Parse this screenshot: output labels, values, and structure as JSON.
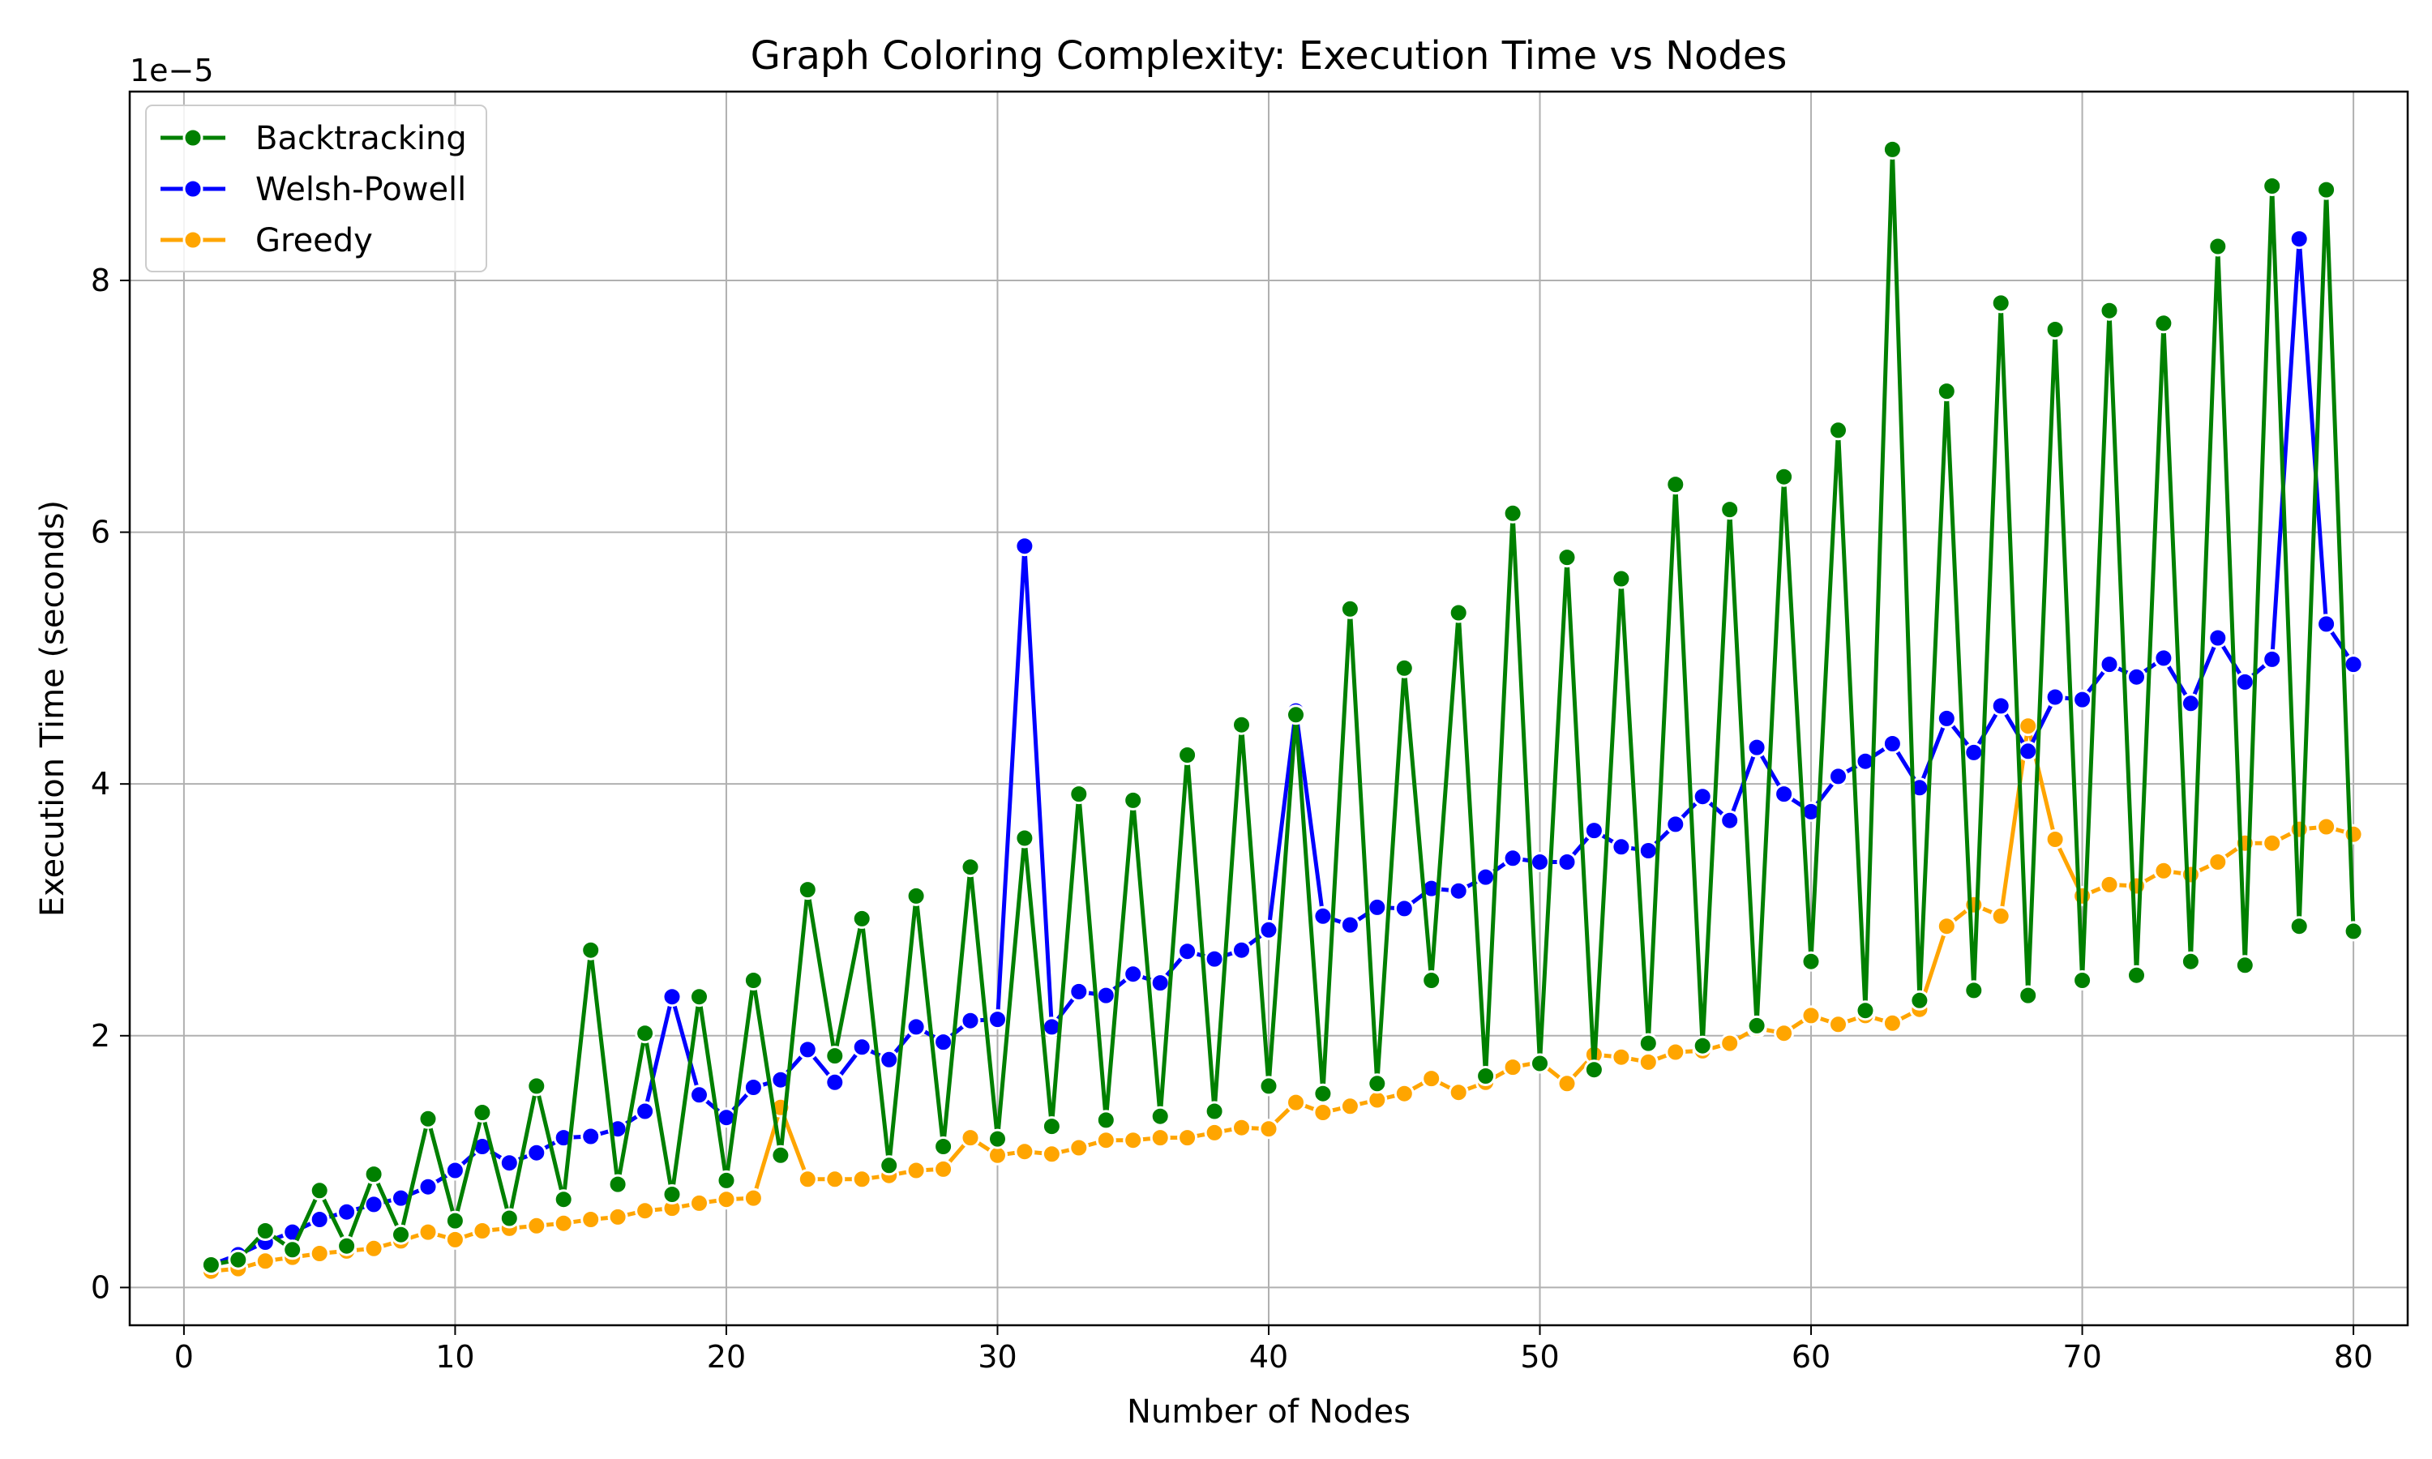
{
  "chart_data": {
    "type": "line",
    "title": "Graph Coloring Complexity: Execution Time vs Nodes",
    "xlabel": "Number of Nodes",
    "ylabel": "Execution Time (seconds)",
    "y_offset_label": "1e−5",
    "xlim": [
      -2,
      82
    ],
    "ylim": [
      -0.3,
      9.5
    ],
    "xticks": [
      0,
      10,
      20,
      30,
      40,
      50,
      60,
      70,
      80
    ],
    "xtick_labels": [
      "0",
      "10",
      "20",
      "30",
      "40",
      "50",
      "60",
      "70",
      "80"
    ],
    "yticks": [
      0,
      2,
      4,
      6,
      8
    ],
    "ytick_labels": [
      "0",
      "2",
      "4",
      "6",
      "8"
    ],
    "grid": true,
    "legend_position": "top-left",
    "x": [
      1,
      2,
      3,
      4,
      5,
      6,
      7,
      8,
      9,
      10,
      11,
      12,
      13,
      14,
      15,
      16,
      17,
      18,
      19,
      20,
      21,
      22,
      23,
      24,
      25,
      26,
      27,
      28,
      29,
      30,
      31,
      32,
      33,
      34,
      35,
      36,
      37,
      38,
      39,
      40,
      41,
      42,
      43,
      44,
      45,
      46,
      47,
      48,
      49,
      50,
      51,
      52,
      53,
      54,
      55,
      56,
      57,
      58,
      59,
      60,
      61,
      62,
      63,
      64,
      65,
      66,
      67,
      68,
      69,
      70,
      71,
      72,
      73,
      74,
      75,
      76,
      77,
      78,
      79,
      80
    ],
    "series": [
      {
        "name": "Backtracking",
        "color": "#008000",
        "values": [
          0.18,
          0.22,
          0.45,
          0.3,
          0.77,
          0.33,
          0.9,
          0.42,
          1.34,
          0.53,
          1.39,
          0.55,
          1.6,
          0.7,
          2.68,
          0.82,
          2.02,
          0.74,
          2.31,
          0.85,
          2.44,
          1.05,
          3.16,
          1.84,
          2.93,
          0.97,
          3.11,
          1.12,
          3.34,
          1.18,
          3.57,
          1.28,
          3.92,
          1.33,
          3.87,
          1.36,
          4.23,
          1.4,
          4.47,
          1.6,
          4.55,
          1.54,
          5.39,
          1.62,
          4.92,
          2.44,
          5.36,
          1.68,
          6.15,
          1.78,
          5.8,
          1.73,
          5.63,
          1.94,
          6.38,
          1.92,
          6.18,
          2.08,
          6.44,
          2.59,
          6.81,
          2.2,
          9.04,
          2.28,
          7.12,
          2.36,
          7.82,
          2.32,
          7.61,
          2.44,
          7.76,
          2.48,
          7.66,
          2.59,
          8.27,
          2.56,
          8.75,
          2.87,
          8.72,
          2.83
        ]
      },
      {
        "name": "Welsh-Powell",
        "color": "#0000ff",
        "values": [
          0.18,
          0.26,
          0.36,
          0.44,
          0.54,
          0.6,
          0.66,
          0.71,
          0.8,
          0.93,
          1.12,
          0.99,
          1.07,
          1.19,
          1.2,
          1.26,
          1.4,
          2.31,
          1.53,
          1.35,
          1.59,
          1.65,
          1.89,
          1.63,
          1.91,
          1.81,
          2.07,
          1.95,
          2.12,
          2.13,
          5.89,
          2.07,
          2.35,
          2.32,
          2.49,
          2.42,
          2.67,
          2.61,
          2.68,
          2.84,
          4.58,
          2.95,
          2.88,
          3.02,
          3.01,
          3.17,
          3.15,
          3.26,
          3.41,
          3.38,
          3.38,
          3.63,
          3.5,
          3.47,
          3.68,
          3.9,
          3.71,
          4.29,
          3.92,
          3.78,
          4.06,
          4.18,
          4.32,
          3.97,
          4.52,
          4.25,
          4.62,
          4.26,
          4.69,
          4.67,
          4.95,
          4.85,
          5.0,
          4.64,
          5.16,
          4.81,
          4.99,
          8.33,
          5.27,
          4.95
        ]
      },
      {
        "name": "Greedy",
        "color": "#ffa500",
        "values": [
          0.13,
          0.15,
          0.21,
          0.24,
          0.27,
          0.29,
          0.31,
          0.37,
          0.44,
          0.38,
          0.45,
          0.47,
          0.49,
          0.51,
          0.54,
          0.56,
          0.61,
          0.63,
          0.67,
          0.7,
          0.71,
          1.43,
          0.86,
          0.86,
          0.86,
          0.89,
          0.93,
          0.94,
          1.19,
          1.05,
          1.08,
          1.06,
          1.11,
          1.17,
          1.17,
          1.19,
          1.19,
          1.23,
          1.27,
          1.26,
          1.47,
          1.39,
          1.44,
          1.49,
          1.54,
          1.66,
          1.55,
          1.63,
          1.75,
          1.79,
          1.62,
          1.85,
          1.83,
          1.79,
          1.87,
          1.88,
          1.94,
          2.06,
          2.02,
          2.16,
          2.09,
          2.16,
          2.1,
          2.21,
          2.87,
          3.04,
          2.95,
          4.46,
          3.56,
          3.11,
          3.2,
          3.19,
          3.31,
          3.28,
          3.38,
          3.53,
          3.53,
          3.64,
          3.66,
          3.6
        ]
      }
    ]
  }
}
